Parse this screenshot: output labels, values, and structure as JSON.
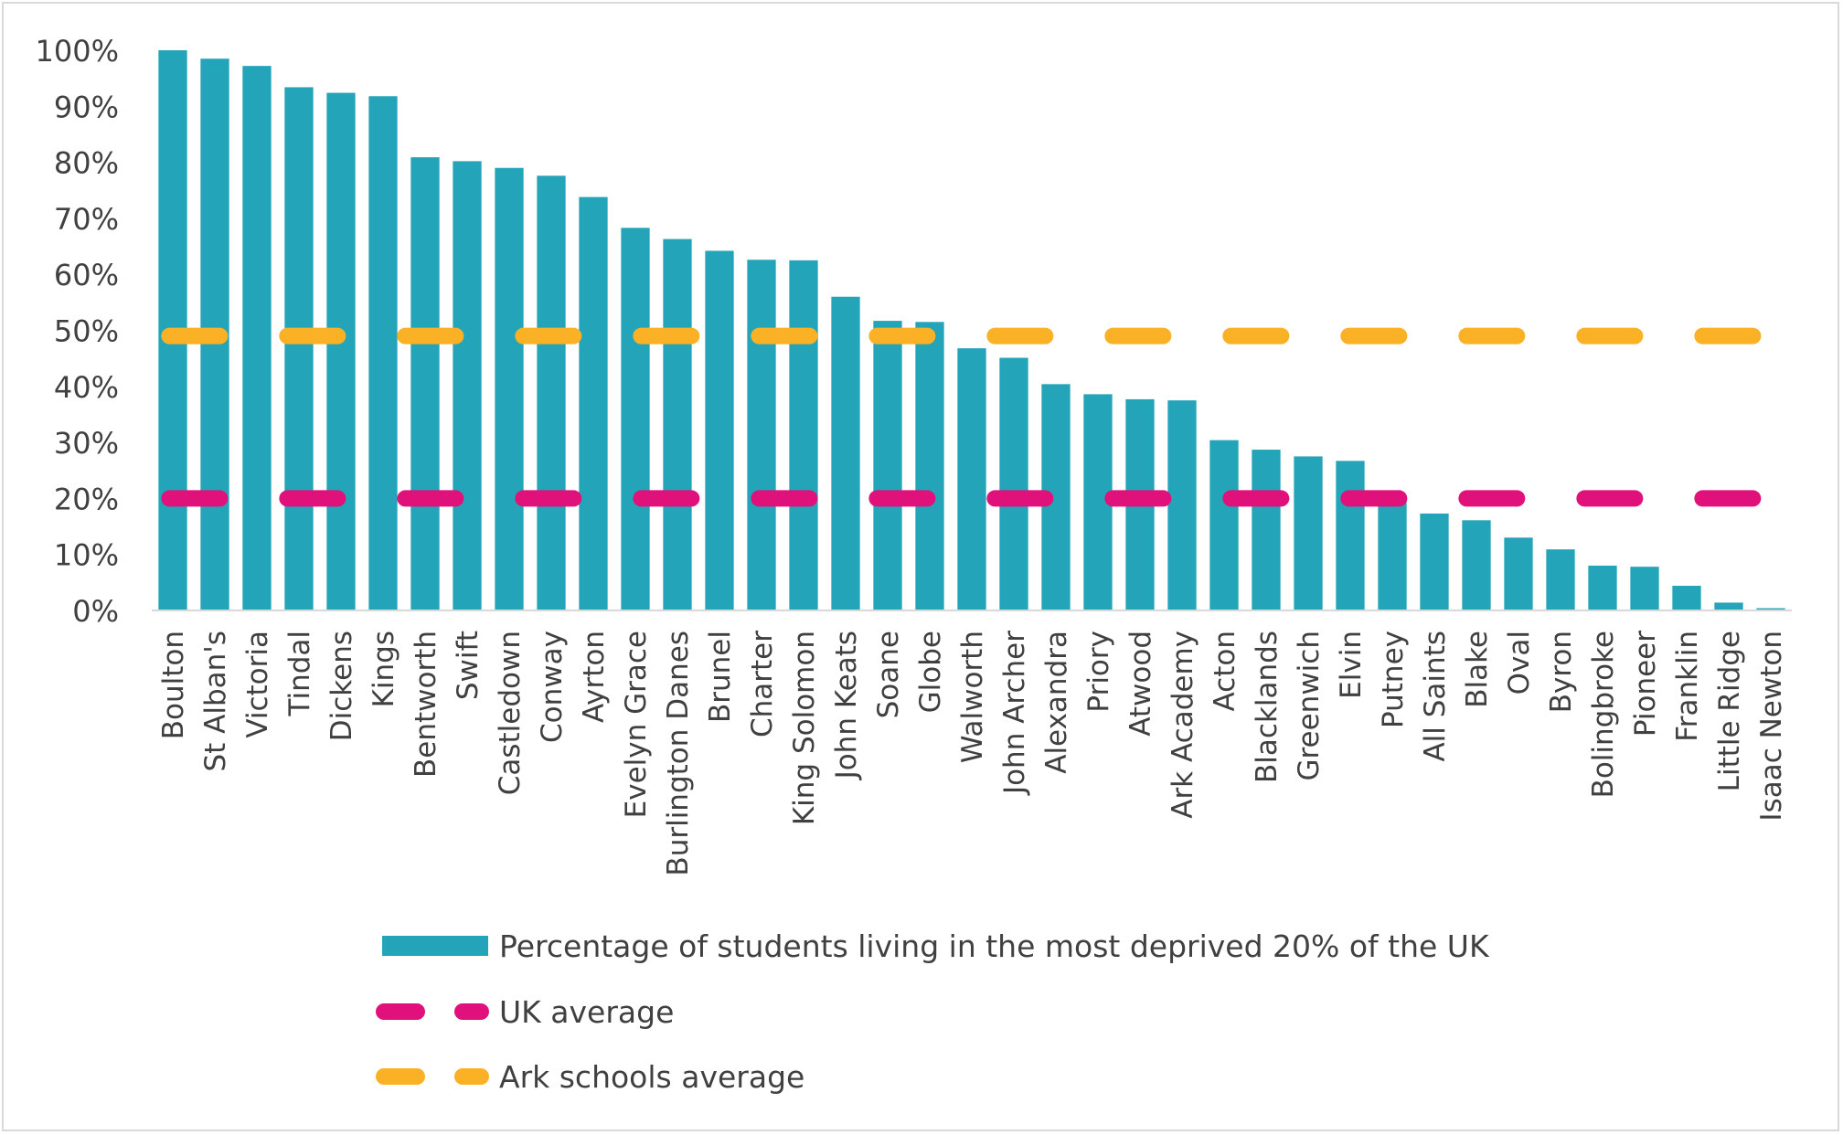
{
  "chart_data": {
    "type": "bar",
    "title": "",
    "xlabel": "",
    "ylabel": "",
    "ylim": [
      0,
      100
    ],
    "yticks": [
      0,
      10,
      20,
      30,
      40,
      50,
      60,
      70,
      80,
      90,
      100
    ],
    "ytick_suffix": "%",
    "grid": false,
    "legend_position": "bottom",
    "categories": [
      "Boulton",
      "St Alban's",
      "Victoria",
      "Tindal",
      "Dickens",
      "Kings",
      "Bentworth",
      "Swift",
      "Castledown",
      "Conway",
      "Ayrton",
      "Evelyn Grace",
      "Burlington Danes",
      "Brunel",
      "Charter",
      "King Solomon",
      "John Keats",
      "Soane",
      "Globe",
      "Walworth",
      "John Archer",
      "Alexandra",
      "Priory",
      "Atwood",
      "Ark Academy",
      "Acton",
      "Blacklands",
      "Greenwich",
      "Elvin",
      "Putney",
      "All Saints",
      "Blake",
      "Oval",
      "Byron",
      "Bolingbroke",
      "Pioneer",
      "Franklin",
      "Little Ridge",
      "Isaac Newton"
    ],
    "series": [
      {
        "name": "Percentage of students living in the most deprived 20% of the UK",
        "kind": "bar",
        "color": "#24a4b8",
        "values": [
          100,
          98.5,
          97.2,
          93.4,
          92.4,
          91.8,
          80.9,
          80.2,
          79.0,
          77.6,
          73.8,
          68.3,
          66.3,
          64.2,
          62.6,
          62.5,
          56.0,
          51.7,
          51.5,
          46.8,
          45.1,
          40.4,
          38.6,
          37.7,
          37.5,
          30.4,
          28.7,
          27.5,
          26.7,
          19.6,
          17.3,
          16.1,
          13.0,
          10.9,
          8.0,
          7.8,
          4.4,
          1.4,
          0.4
        ]
      },
      {
        "name": "UK average",
        "kind": "dashed-line",
        "color": "#e0117a",
        "value": 20
      },
      {
        "name": "Ark schools average",
        "kind": "dashed-line",
        "color": "#fbb126",
        "value": 49
      }
    ]
  }
}
